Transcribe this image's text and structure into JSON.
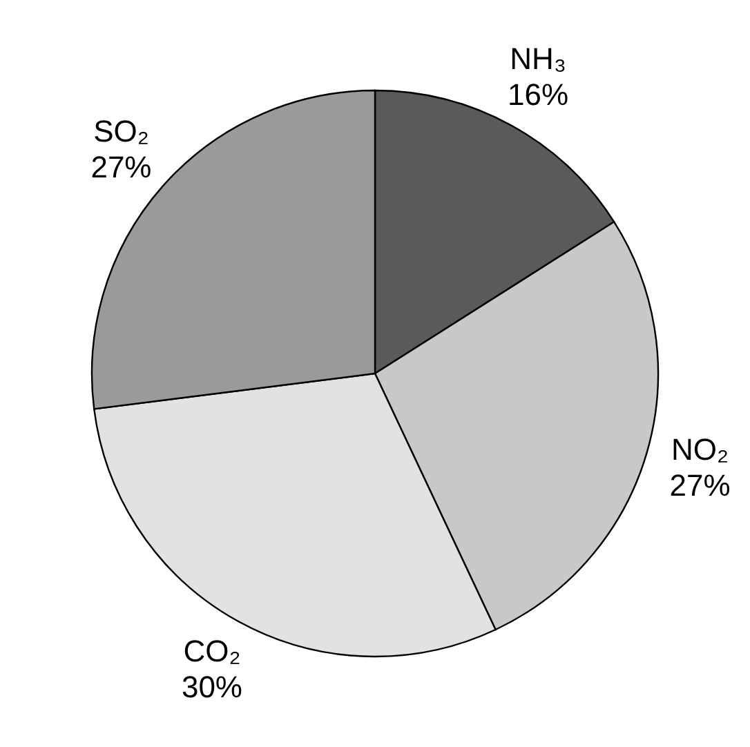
{
  "chart_data": {
    "type": "pie",
    "categories": [
      "NH₃",
      "NO₂",
      "CO₂",
      "SO₂"
    ],
    "values": [
      16,
      27,
      30,
      27
    ],
    "value_labels": [
      "16%",
      "27%",
      "30%",
      "27%"
    ],
    "colors": [
      "#5a5a5a",
      "#c8c8c8",
      "#e2e2e2",
      "#9a9a9a"
    ]
  }
}
